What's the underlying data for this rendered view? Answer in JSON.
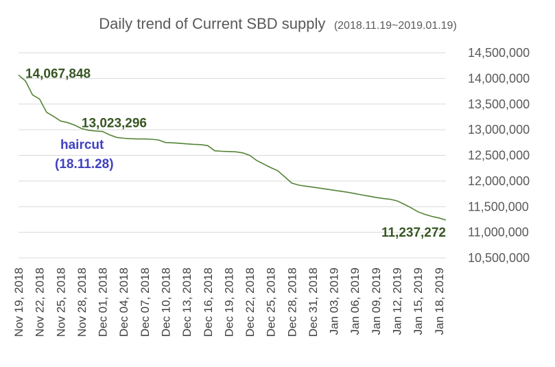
{
  "chart_data": {
    "type": "line",
    "title": "Daily trend of Current SBD supply",
    "subtitle": "(2018.11.19~2019.01.19)",
    "xlabel": "",
    "ylabel": "",
    "ylim": [
      10500000,
      14500000
    ],
    "y_ticks": [
      10500000,
      11000000,
      11500000,
      12000000,
      12500000,
      13000000,
      13500000,
      14000000,
      14500000
    ],
    "y_tick_labels": [
      "10,500,000",
      "11,000,000",
      "11,500,000",
      "12,000,000",
      "12,500,000",
      "13,000,000",
      "13,500,000",
      "14,000,000",
      "14,500,000"
    ],
    "y_axis_position": "right",
    "grid": "horizontal",
    "legend": "none",
    "x_tick_labels": [
      "Nov 19, 2018",
      "Nov 22, 2018",
      "Nov 25, 2018",
      "Nov 28, 2018",
      "Dec 01, 2018",
      "Dec 04, 2018",
      "Dec 07, 2018",
      "Dec 10, 2018",
      "Dec 13, 2018",
      "Dec 16, 2018",
      "Dec 19, 2018",
      "Dec 22, 2018",
      "Dec 25, 2018",
      "Dec 28, 2018",
      "Dec 31, 2018",
      "Jan 03, 2019",
      "Jan 06, 2019",
      "Jan 09, 2019",
      "Jan 12, 2019",
      "Jan 15, 2019",
      "Jan 18, 2019"
    ],
    "x": [
      "2018-11-19",
      "2018-11-20",
      "2018-11-21",
      "2018-11-22",
      "2018-11-23",
      "2018-11-24",
      "2018-11-25",
      "2018-11-26",
      "2018-11-27",
      "2018-11-28",
      "2018-11-29",
      "2018-11-30",
      "2018-12-01",
      "2018-12-02",
      "2018-12-03",
      "2018-12-04",
      "2018-12-05",
      "2018-12-06",
      "2018-12-07",
      "2018-12-08",
      "2018-12-09",
      "2018-12-10",
      "2018-12-11",
      "2018-12-12",
      "2018-12-13",
      "2018-12-14",
      "2018-12-15",
      "2018-12-16",
      "2018-12-17",
      "2018-12-18",
      "2018-12-19",
      "2018-12-20",
      "2018-12-21",
      "2018-12-22",
      "2018-12-23",
      "2018-12-24",
      "2018-12-25",
      "2018-12-26",
      "2018-12-27",
      "2018-12-28",
      "2018-12-29",
      "2018-12-30",
      "2018-12-31",
      "2019-01-01",
      "2019-01-02",
      "2019-01-03",
      "2019-01-04",
      "2019-01-05",
      "2019-01-06",
      "2019-01-07",
      "2019-01-08",
      "2019-01-09",
      "2019-01-10",
      "2019-01-11",
      "2019-01-12",
      "2019-01-13",
      "2019-01-14",
      "2019-01-15",
      "2019-01-16",
      "2019-01-17",
      "2019-01-18",
      "2019-01-19"
    ],
    "series": [
      {
        "color": "#548235",
        "values": [
          14067848,
          13950000,
          13680000,
          13600000,
          13340000,
          13260000,
          13170000,
          13140000,
          13090000,
          13023296,
          12990000,
          12975000,
          12965000,
          12900000,
          12850000,
          12835000,
          12825000,
          12820000,
          12820000,
          12815000,
          12800000,
          12750000,
          12745000,
          12735000,
          12725000,
          12715000,
          12710000,
          12690000,
          12590000,
          12580000,
          12575000,
          12570000,
          12550000,
          12500000,
          12400000,
          12330000,
          12260000,
          12200000,
          12080000,
          11960000,
          11920000,
          11900000,
          11880000,
          11860000,
          11840000,
          11820000,
          11800000,
          11780000,
          11755000,
          11730000,
          11705000,
          11680000,
          11660000,
          11645000,
          11615000,
          11550000,
          11480000,
          11400000,
          11350000,
          11310000,
          11280000,
          11237272
        ]
      }
    ],
    "data_labels": [
      {
        "text": "14,067,848",
        "x": "2018-11-19",
        "y": 14067848
      },
      {
        "text": "13,023,296",
        "x": "2018-11-28",
        "y": 13023296
      },
      {
        "text": "11,237,272",
        "x": "2019-01-19",
        "y": 11237272
      }
    ],
    "annotation": {
      "lines": [
        "haircut",
        "(18.11.28)"
      ],
      "color": "#4040c0"
    },
    "label_color": "#375623"
  }
}
